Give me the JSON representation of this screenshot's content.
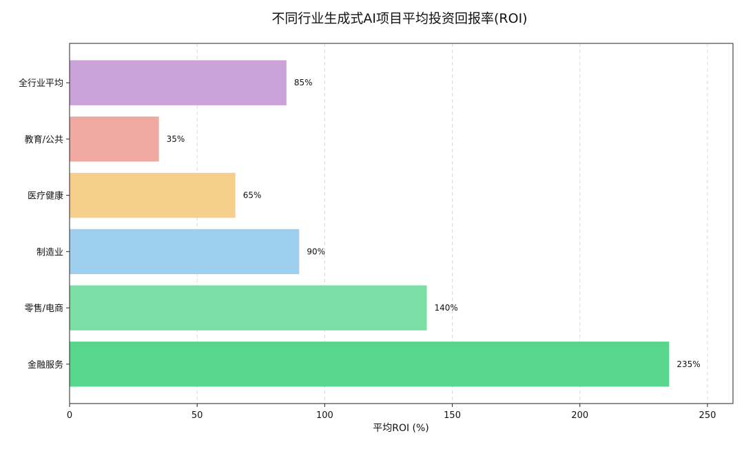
{
  "chart_data": {
    "type": "bar",
    "orientation": "horizontal",
    "title": "不同行业生成式AI项目平均投资回报率(ROI)",
    "xlabel": "平均ROI (%)",
    "ylabel": "",
    "categories": [
      "金融服务",
      "零售/电商",
      "制造业",
      "医疗健康",
      "教育/公共",
      "全行业平均"
    ],
    "values": [
      235,
      140,
      90,
      65,
      35,
      85
    ],
    "value_labels": [
      "235%",
      "140%",
      "90%",
      "65%",
      "35%",
      "85%"
    ],
    "colors": [
      "#58d68d",
      "#7bdea5",
      "#9ecfee",
      "#f6cf8c",
      "#f0a9a1",
      "#c8a2d8"
    ],
    "xlim": [
      0,
      260
    ],
    "xticks": [
      0,
      50,
      100,
      150,
      200,
      250
    ],
    "xtick_labels": [
      "0",
      "50",
      "100",
      "150",
      "200",
      "250"
    ],
    "grid": "x-dashed",
    "legend": "none"
  }
}
